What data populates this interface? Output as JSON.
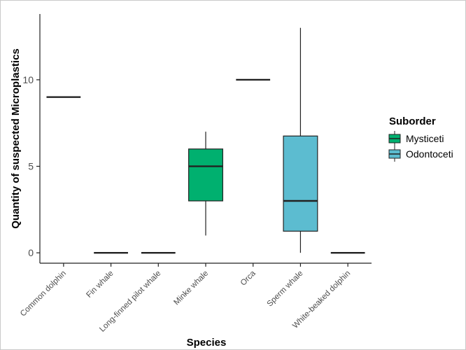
{
  "chart_data": {
    "type": "boxplot",
    "xlabel": "Species",
    "ylabel": "Quantity of suspected Microplastics",
    "ylim": [
      -0.6,
      13.8
    ],
    "yticks": [
      0,
      5,
      10
    ],
    "grid": false,
    "legend": {
      "title": "Suborder",
      "position": "right",
      "entries": [
        {
          "name": "Mysticeti",
          "color": "#00b06f"
        },
        {
          "name": "Odontoceti",
          "color": "#5cbcd0"
        }
      ]
    },
    "categories": [
      "Common dolphin",
      "Fin whale",
      "Long-finned pilot whale",
      "Minke whale",
      "Orca",
      "Sperm whale",
      "White-beaked dolphin"
    ],
    "boxes": [
      {
        "category": "Common dolphin",
        "suborder": "Odontoceti",
        "min": 9,
        "q1": 9,
        "median": 9,
        "q3": 9,
        "max": 9
      },
      {
        "category": "Fin whale",
        "suborder": "Mysticeti",
        "min": 0,
        "q1": 0,
        "median": 0,
        "q3": 0,
        "max": 0
      },
      {
        "category": "Long-finned pilot whale",
        "suborder": "Odontoceti",
        "min": 0,
        "q1": 0,
        "median": 0,
        "q3": 0,
        "max": 0
      },
      {
        "category": "Minke whale",
        "suborder": "Mysticeti",
        "min": 1,
        "q1": 3,
        "median": 5,
        "q3": 6,
        "max": 7
      },
      {
        "category": "Orca",
        "suborder": "Odontoceti",
        "min": 10,
        "q1": 10,
        "median": 10,
        "q3": 10,
        "max": 10
      },
      {
        "category": "Sperm whale",
        "suborder": "Odontoceti",
        "min": 0,
        "q1": 1.25,
        "median": 3,
        "q3": 6.75,
        "max": 13
      },
      {
        "category": "White-beaked dolphin",
        "suborder": "Odontoceti",
        "min": 0,
        "q1": 0,
        "median": 0,
        "q3": 0,
        "max": 0
      }
    ]
  }
}
